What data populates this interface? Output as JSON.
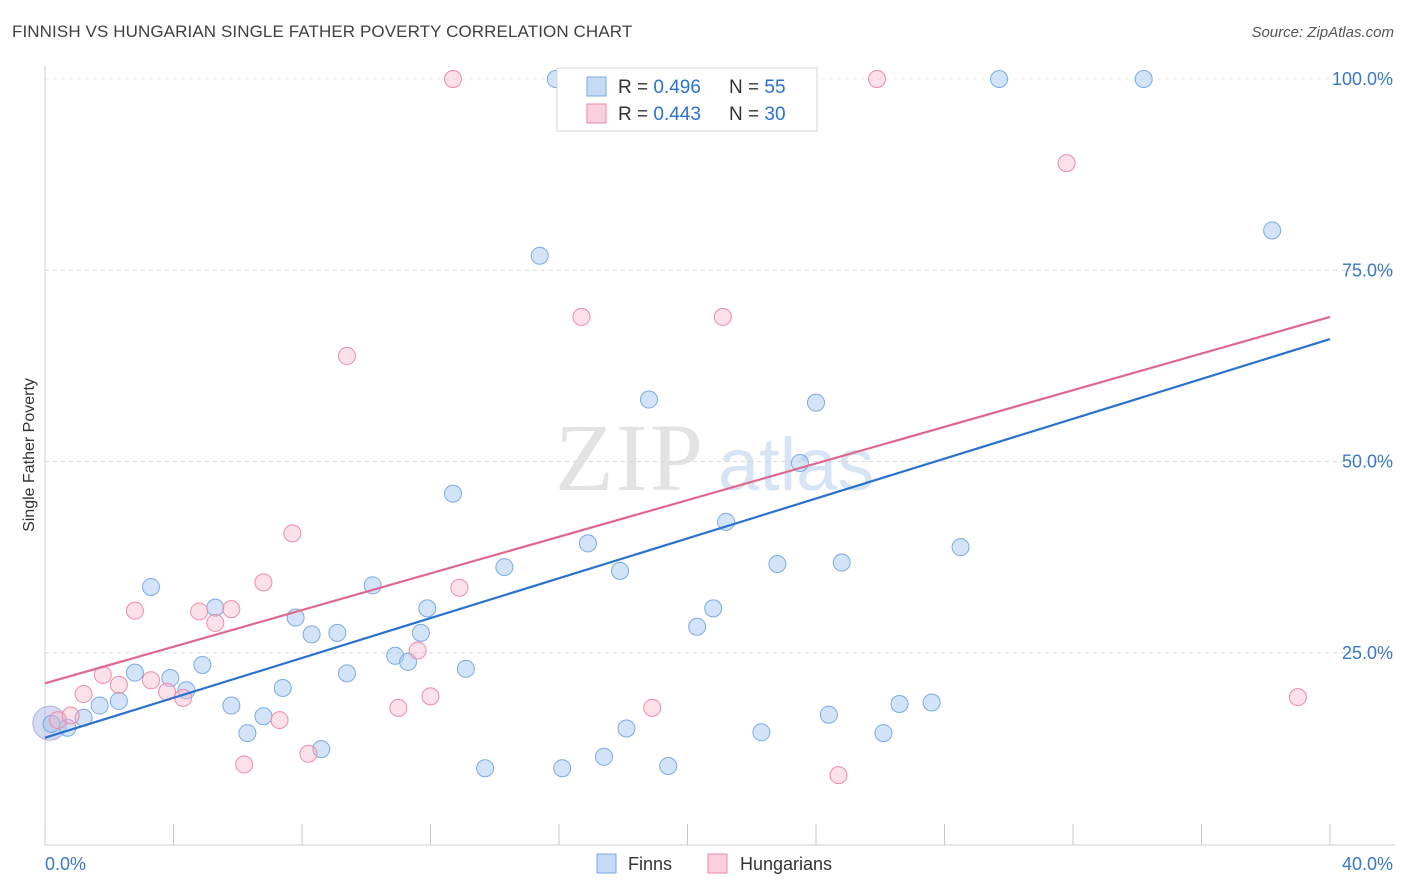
{
  "title": "FINNISH VS HUNGARIAN SINGLE FATHER POVERTY CORRELATION CHART",
  "source": "Source: ZipAtlas.com",
  "watermark": {
    "zip": "ZIP",
    "atlas": "atlas"
  },
  "colors": {
    "finns": "#7aaae8",
    "finns_line": "#2a72d0",
    "hungarians": "#f08aa8",
    "hungarians_line": "#e06890",
    "tick_label": "#3a78c8",
    "grid": "#d8d8d8"
  },
  "legend_top": {
    "finns": {
      "r_label": "R = ",
      "r_value": "0.496",
      "n_label": "N = ",
      "n_value": "55"
    },
    "hungarians": {
      "r_label": "R = ",
      "r_value": "0.443",
      "n_label": "N = ",
      "n_value": "30"
    }
  },
  "legend_bottom": {
    "finns": "Finns",
    "hungarians": "Hungarians"
  },
  "chart_data": {
    "type": "scatter",
    "title": "FINNISH VS HUNGARIAN SINGLE FATHER POVERTY CORRELATION CHART",
    "xlabel": "",
    "ylabel": "Single Father Poverty",
    "xlim": [
      0,
      40
    ],
    "ylim": [
      0,
      103
    ],
    "x_tick_labels": [
      "0.0%",
      "40.0%"
    ],
    "y_ticks": [
      25,
      50,
      75,
      100
    ],
    "y_tick_labels": [
      "25.0%",
      "50.0%",
      "75.0%",
      "100.0%"
    ],
    "grid": true,
    "legend_position": "top-center",
    "series": [
      {
        "name": "Finns",
        "r": 0.496,
        "n": 55,
        "trend": {
          "x": [
            0,
            40
          ],
          "y": [
            13.9,
            66.0
          ]
        },
        "points": [
          [
            0.2,
            15.7
          ],
          [
            0.7,
            15.2
          ],
          [
            1.2,
            16.5
          ],
          [
            1.7,
            18.1
          ],
          [
            2.3,
            18.7
          ],
          [
            2.8,
            22.4
          ],
          [
            3.3,
            33.6
          ],
          [
            3.9,
            21.7
          ],
          [
            4.4,
            20.1
          ],
          [
            4.9,
            23.4
          ],
          [
            5.3,
            30.9
          ],
          [
            5.8,
            18.1
          ],
          [
            6.3,
            14.5
          ],
          [
            6.8,
            16.7
          ],
          [
            7.4,
            20.4
          ],
          [
            7.8,
            29.6
          ],
          [
            8.3,
            27.4
          ],
          [
            8.6,
            12.4
          ],
          [
            9.1,
            27.6
          ],
          [
            9.4,
            22.3
          ],
          [
            10.2,
            33.8
          ],
          [
            10.9,
            24.6
          ],
          [
            11.3,
            23.8
          ],
          [
            11.7,
            27.6
          ],
          [
            11.9,
            30.8
          ],
          [
            12.7,
            45.8
          ],
          [
            13.1,
            22.9
          ],
          [
            13.7,
            9.9
          ],
          [
            14.3,
            36.2
          ],
          [
            15.4,
            76.9
          ],
          [
            15.9,
            100
          ],
          [
            16.1,
            9.9
          ],
          [
            16.9,
            39.3
          ],
          [
            17.4,
            11.4
          ],
          [
            17.9,
            35.7
          ],
          [
            18.1,
            15.1
          ],
          [
            18.8,
            58.1
          ],
          [
            19.4,
            10.2
          ],
          [
            20.3,
            28.4
          ],
          [
            20.8,
            30.8
          ],
          [
            21.2,
            42.1
          ],
          [
            21.8,
            100
          ],
          [
            22.3,
            14.6
          ],
          [
            22.8,
            36.6
          ],
          [
            23.5,
            49.8
          ],
          [
            24.0,
            57.7
          ],
          [
            24.4,
            16.9
          ],
          [
            24.8,
            36.8
          ],
          [
            26.1,
            14.5
          ],
          [
            26.6,
            18.3
          ],
          [
            27.6,
            18.5
          ],
          [
            28.5,
            38.8
          ],
          [
            29.7,
            100
          ],
          [
            34.2,
            100
          ],
          [
            38.2,
            80.2
          ]
        ]
      },
      {
        "name": "Hungarians",
        "r": 0.443,
        "n": 30,
        "trend": {
          "x": [
            0,
            40
          ],
          "y": [
            21.0,
            68.9
          ]
        },
        "points": [
          [
            0.4,
            16.2
          ],
          [
            0.8,
            16.8
          ],
          [
            1.2,
            19.6
          ],
          [
            1.8,
            22.1
          ],
          [
            2.3,
            20.8
          ],
          [
            2.8,
            30.5
          ],
          [
            3.3,
            21.4
          ],
          [
            3.8,
            19.9
          ],
          [
            4.3,
            19.1
          ],
          [
            4.8,
            30.4
          ],
          [
            5.3,
            28.9
          ],
          [
            5.8,
            30.7
          ],
          [
            6.2,
            10.4
          ],
          [
            6.8,
            34.2
          ],
          [
            7.3,
            16.2
          ],
          [
            7.7,
            40.6
          ],
          [
            8.2,
            11.8
          ],
          [
            9.4,
            63.8
          ],
          [
            11.0,
            17.8
          ],
          [
            11.6,
            25.3
          ],
          [
            12.0,
            19.3
          ],
          [
            12.7,
            100
          ],
          [
            12.9,
            33.5
          ],
          [
            16.7,
            68.9
          ],
          [
            18.9,
            17.8
          ],
          [
            21.1,
            68.9
          ],
          [
            24.7,
            9.0
          ],
          [
            25.9,
            100
          ],
          [
            31.8,
            89.0
          ],
          [
            39.0,
            19.2
          ]
        ]
      }
    ]
  }
}
